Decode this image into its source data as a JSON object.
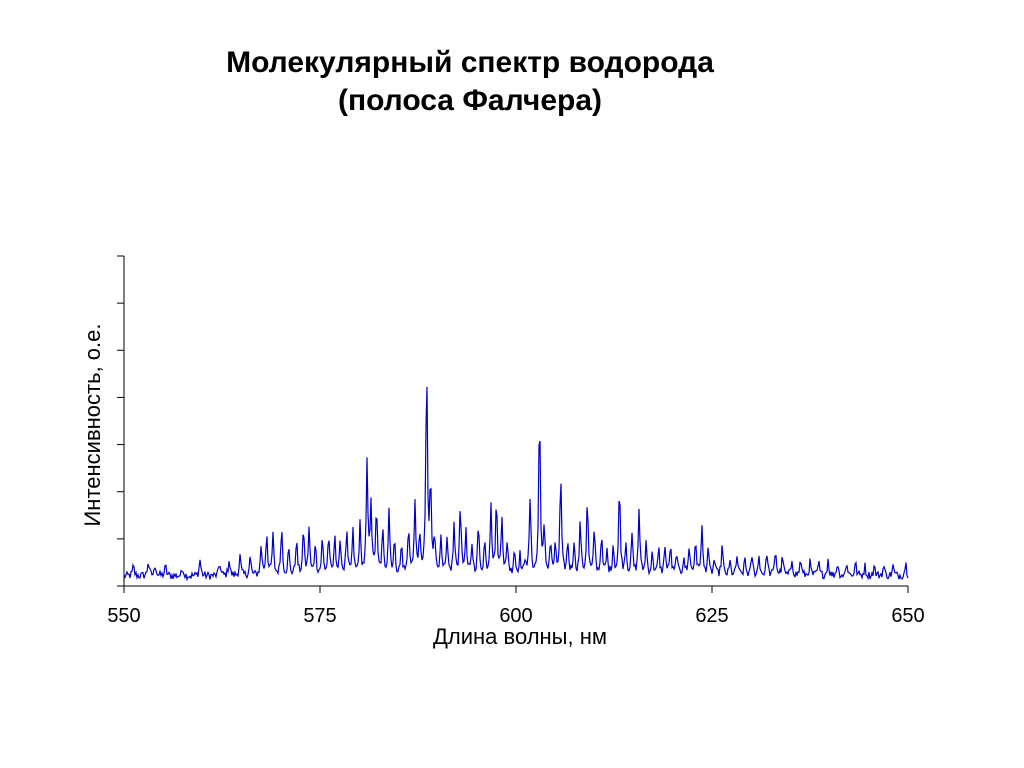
{
  "title": {
    "line1": "Молекулярный спектр водорода",
    "line2": "(полоса Фалчера)"
  },
  "chart_data": {
    "type": "line",
    "xlabel": "Длина волны, нм",
    "ylabel": "Интенсивность, о.е.",
    "xlim": [
      550,
      650
    ],
    "ylim": [
      0,
      1
    ],
    "x_ticks": [
      550,
      575,
      600,
      625,
      650
    ],
    "y_tick_count": 8,
    "y_tick_labels_shown": false,
    "line_color": "#0000cc",
    "baseline": 0.03,
    "noise": 0.012,
    "peaks": [
      [
        551.2,
        0.03
      ],
      [
        553.1,
        0.045
      ],
      [
        554.0,
        0.035
      ],
      [
        555.3,
        0.03
      ],
      [
        557.5,
        0.025
      ],
      [
        559.7,
        0.05
      ],
      [
        562.2,
        0.04
      ],
      [
        563.4,
        0.05
      ],
      [
        564.8,
        0.06
      ],
      [
        566.1,
        0.055
      ],
      [
        567.5,
        0.09
      ],
      [
        568.2,
        0.13
      ],
      [
        569.0,
        0.12
      ],
      [
        570.1,
        0.15
      ],
      [
        571.0,
        0.08
      ],
      [
        572.0,
        0.11
      ],
      [
        572.9,
        0.14
      ],
      [
        573.6,
        0.14
      ],
      [
        574.4,
        0.1
      ],
      [
        575.3,
        0.11
      ],
      [
        576.1,
        0.12
      ],
      [
        576.9,
        0.12
      ],
      [
        577.6,
        0.1
      ],
      [
        578.4,
        0.13
      ],
      [
        579.2,
        0.13
      ],
      [
        580.1,
        0.15
      ],
      [
        581.0,
        0.33
      ],
      [
        581.5,
        0.22
      ],
      [
        582.2,
        0.2
      ],
      [
        583.0,
        0.13
      ],
      [
        583.8,
        0.2
      ],
      [
        584.5,
        0.1
      ],
      [
        585.4,
        0.09
      ],
      [
        586.3,
        0.15
      ],
      [
        587.1,
        0.21
      ],
      [
        587.7,
        0.12
      ],
      [
        588.6,
        0.63
      ],
      [
        589.1,
        0.27
      ],
      [
        589.6,
        0.12
      ],
      [
        590.4,
        0.11
      ],
      [
        591.2,
        0.1
      ],
      [
        592.1,
        0.15
      ],
      [
        592.9,
        0.22
      ],
      [
        593.6,
        0.13
      ],
      [
        594.4,
        0.09
      ],
      [
        595.2,
        0.15
      ],
      [
        596.0,
        0.1
      ],
      [
        596.8,
        0.22
      ],
      [
        597.5,
        0.22
      ],
      [
        598.2,
        0.18
      ],
      [
        598.9,
        0.1
      ],
      [
        599.8,
        0.08
      ],
      [
        600.5,
        0.06
      ],
      [
        601.2,
        0.05
      ],
      [
        601.8,
        0.23
      ],
      [
        603.0,
        0.5
      ],
      [
        603.6,
        0.13
      ],
      [
        604.4,
        0.1
      ],
      [
        605.0,
        0.08
      ],
      [
        605.7,
        0.3
      ],
      [
        606.6,
        0.1
      ],
      [
        607.4,
        0.1
      ],
      [
        608.2,
        0.16
      ],
      [
        609.1,
        0.23
      ],
      [
        610.0,
        0.14
      ],
      [
        610.9,
        0.12
      ],
      [
        611.6,
        0.07
      ],
      [
        612.4,
        0.09
      ],
      [
        613.2,
        0.27
      ],
      [
        614.0,
        0.1
      ],
      [
        614.8,
        0.12
      ],
      [
        615.7,
        0.2
      ],
      [
        616.6,
        0.1
      ],
      [
        617.4,
        0.07
      ],
      [
        618.2,
        0.08
      ],
      [
        619.0,
        0.09
      ],
      [
        619.7,
        0.09
      ],
      [
        620.5,
        0.07
      ],
      [
        621.4,
        0.06
      ],
      [
        622.1,
        0.09
      ],
      [
        622.9,
        0.11
      ],
      [
        623.7,
        0.15
      ],
      [
        624.5,
        0.08
      ],
      [
        625.3,
        0.05
      ],
      [
        626.3,
        0.09
      ],
      [
        627.3,
        0.04
      ],
      [
        628.2,
        0.06
      ],
      [
        629.2,
        0.05
      ],
      [
        630.1,
        0.06
      ],
      [
        631.0,
        0.06
      ],
      [
        632.0,
        0.07
      ],
      [
        633.1,
        0.08
      ],
      [
        634.0,
        0.06
      ],
      [
        635.2,
        0.05
      ],
      [
        636.3,
        0.05
      ],
      [
        637.5,
        0.04
      ],
      [
        638.6,
        0.04
      ],
      [
        639.8,
        0.05
      ],
      [
        641.0,
        0.04
      ],
      [
        642.2,
        0.04
      ],
      [
        643.3,
        0.04
      ],
      [
        644.5,
        0.03
      ],
      [
        645.7,
        0.03
      ],
      [
        646.9,
        0.03
      ],
      [
        648.1,
        0.03
      ],
      [
        649.7,
        0.04
      ]
    ]
  }
}
